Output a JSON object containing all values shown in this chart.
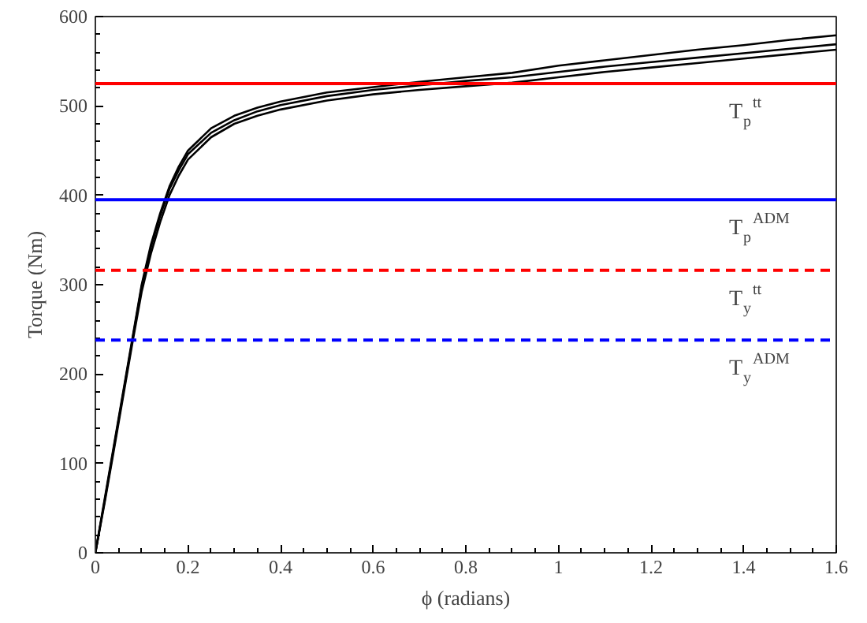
{
  "chart_data": {
    "type": "line",
    "xlabel": "ϕ (radians)",
    "ylabel": "Torque (Nm)",
    "x": [
      0,
      0.02,
      0.04,
      0.06,
      0.08,
      0.1,
      0.12,
      0.14,
      0.16,
      0.18,
      0.2,
      0.25,
      0.3,
      0.35,
      0.4,
      0.5,
      0.6,
      0.7,
      0.8,
      0.9,
      1.0,
      1.1,
      1.2,
      1.3,
      1.4,
      1.5,
      1.6
    ],
    "series": [
      {
        "color": "#000000",
        "values": [
          0,
          60,
          120,
          180,
          240,
          300,
          345,
          380,
          410,
          432,
          450,
          475,
          489,
          498,
          505,
          515,
          521,
          527,
          532,
          537,
          545,
          551,
          557,
          563,
          568,
          574,
          579
        ]
      },
      {
        "color": "#000000",
        "values": [
          0,
          58,
          118,
          178,
          238,
          298,
          342,
          377,
          407,
          428,
          446,
          470,
          484,
          494,
          501,
          511,
          518,
          523,
          528,
          532,
          538,
          544,
          549,
          554,
          559,
          564,
          569
        ]
      },
      {
        "color": "#000000",
        "values": [
          0,
          56,
          115,
          175,
          235,
          292,
          335,
          370,
          400,
          422,
          440,
          465,
          480,
          489,
          496,
          506,
          513,
          518,
          522,
          526,
          532,
          538,
          543,
          548,
          553,
          558,
          563
        ]
      }
    ],
    "xlim": [
      0,
      1.6
    ],
    "xticks": [
      0,
      0.2,
      0.4,
      0.6,
      0.8,
      1,
      1.2,
      1.4,
      1.6
    ],
    "ylim": [
      0,
      600
    ],
    "yticks": [
      0,
      100,
      200,
      300,
      400,
      500,
      600
    ],
    "grid": false,
    "marker": "none",
    "line_style": "solid",
    "ref_lines": [
      {
        "axis": "y",
        "value": 525,
        "label": "T$_{p}$$^{tt}$",
        "color": "#ff0000",
        "line_style": "solid"
      },
      {
        "axis": "y",
        "value": 395,
        "label": "T$_{p}$$^{ADM}$",
        "color": "#0000ff",
        "line_style": "solid"
      },
      {
        "axis": "y",
        "value": 316,
        "label": "T$_{y}$$^{tt}$",
        "color": "#ff0000",
        "line_style": "dashed"
      },
      {
        "axis": "y",
        "value": 238,
        "label": "T$_{y}$$^{ADM}$",
        "color": "#0000ff",
        "line_style": "dashed"
      }
    ]
  }
}
